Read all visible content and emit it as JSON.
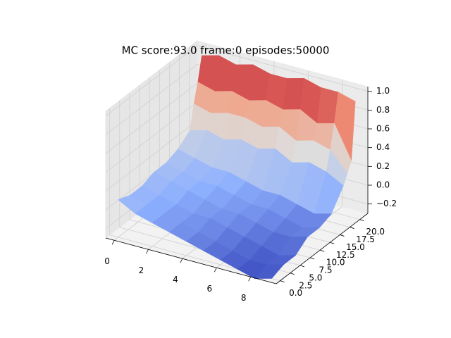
{
  "chart_data": {
    "type": "surface",
    "title": "MC score:93.0 frame:0 episodes:50000",
    "colormap": "coolwarm",
    "x": [
      0,
      1,
      2,
      3,
      4,
      5,
      6,
      7,
      8,
      9
    ],
    "y": [
      0,
      3,
      6,
      9,
      12,
      15,
      18,
      19,
      20,
      21
    ],
    "z": [
      [
        0.1,
        0.0,
        -0.05,
        -0.1,
        -0.15,
        -0.2,
        -0.25,
        -0.3,
        -0.35,
        -0.3
      ],
      [
        0.05,
        0.0,
        -0.05,
        -0.1,
        -0.15,
        -0.2,
        -0.25,
        -0.3,
        -0.3,
        -0.25
      ],
      [
        0.05,
        0.0,
        -0.05,
        -0.1,
        -0.1,
        -0.15,
        -0.2,
        -0.25,
        -0.3,
        -0.25
      ],
      [
        0.1,
        0.05,
        0.0,
        -0.05,
        -0.1,
        -0.1,
        -0.15,
        -0.2,
        -0.2,
        -0.15
      ],
      [
        0.1,
        0.05,
        0.0,
        0.0,
        -0.05,
        -0.1,
        -0.1,
        -0.15,
        -0.2,
        -0.15
      ],
      [
        0.15,
        0.1,
        0.05,
        0.05,
        0.0,
        -0.05,
        -0.05,
        -0.1,
        -0.15,
        -0.1
      ],
      [
        0.25,
        0.3,
        0.25,
        0.3,
        0.25,
        0.3,
        0.2,
        0.25,
        0.2,
        0.1
      ],
      [
        0.5,
        0.45,
        0.5,
        0.5,
        0.45,
        0.5,
        0.4,
        0.45,
        0.4,
        0.2
      ],
      [
        0.7,
        0.65,
        0.7,
        0.65,
        0.7,
        0.65,
        0.7,
        0.6,
        0.65,
        0.3
      ],
      [
        0.95,
        1.0,
        0.95,
        1.0,
        0.95,
        0.95,
        1.0,
        0.95,
        0.95,
        0.9
      ]
    ],
    "xlim": [
      -0.5,
      9.5
    ],
    "ylim": [
      -1,
      22
    ],
    "zlim": [
      -0.3,
      1.05
    ],
    "xticks": [
      0,
      2,
      4,
      6,
      8
    ],
    "yticks": [
      {
        "value": 0,
        "label": "0.0"
      },
      2.5,
      {
        "value": 5,
        "label": "5.0"
      },
      7.5,
      {
        "value": 10,
        "label": "10.0"
      },
      12.5,
      {
        "value": 15,
        "label": "15.0"
      },
      17.5,
      {
        "value": 20,
        "label": "20.0"
      }
    ],
    "zticks": [
      {
        "value": -0.2,
        "label": "−0.2"
      },
      {
        "value": 0,
        "label": "0.0"
      },
      0.2,
      0.4,
      0.6,
      0.8,
      {
        "value": 1,
        "label": "1.0"
      }
    ],
    "grid": true
  }
}
